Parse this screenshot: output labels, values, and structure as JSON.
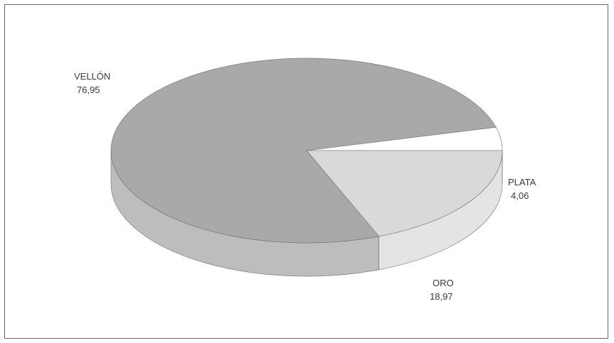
{
  "chart_data": {
    "type": "pie",
    "style": "3d",
    "title": "",
    "slices": [
      {
        "name": "VELLÓN",
        "value": 76.95,
        "value_label": "76,95",
        "color": "#a9a9a9",
        "side_color": "#bdbdbd"
      },
      {
        "name": "PLATA",
        "value": 4.06,
        "value_label": "4,06",
        "color": "#ffffff",
        "side_color": "#f7f7f7"
      },
      {
        "name": "ORO",
        "value": 18.97,
        "value_label": "18,97",
        "color": "#d9d9d9",
        "side_color": "#e4e4e4"
      }
    ]
  }
}
